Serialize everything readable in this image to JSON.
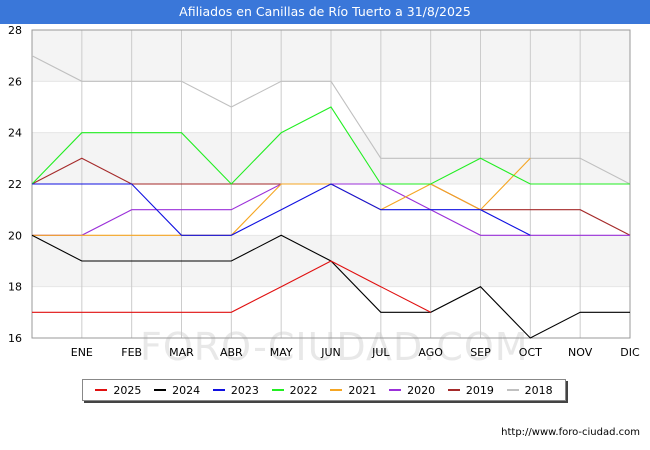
{
  "header": {
    "title": "Afiliados en Canillas de Río Tuerto a 31/8/2025"
  },
  "watermark": "FORO-CIUDAD.COM",
  "source": "http://www.foro-ciudad.com",
  "colors": {
    "title_bg": "#3a77d9",
    "band": "#f4f4f4",
    "grid": "#cccccc"
  },
  "chart_data": {
    "type": "line",
    "title": "Afiliados en Canillas de Río Tuerto a 31/8/2025",
    "x": [
      "",
      "ENE",
      "FEB",
      "MAR",
      "ABR",
      "MAY",
      "JUN",
      "JUL",
      "AGO",
      "SEP",
      "OCT",
      "NOV",
      "DIC"
    ],
    "categories": [
      "ENE",
      "FEB",
      "MAR",
      "ABR",
      "MAY",
      "JUN",
      "JUL",
      "AGO",
      "SEP",
      "OCT",
      "NOV",
      "DIC"
    ],
    "ylim": [
      16,
      28
    ],
    "yticks": [
      16,
      18,
      20,
      22,
      24,
      26,
      28
    ],
    "grid": true,
    "legend_position": "bottom",
    "series": [
      {
        "name": "2018",
        "color": "#c0c0c0",
        "values": [
          27,
          26,
          26,
          26,
          25,
          26,
          26,
          23,
          23,
          23,
          23,
          23,
          22
        ]
      },
      {
        "name": "2019",
        "color": "#a52a2a",
        "values": [
          22,
          23,
          22,
          22,
          22,
          22,
          22,
          22,
          22,
          21,
          21,
          21,
          20
        ]
      },
      {
        "name": "2020",
        "color": "#9b30d9",
        "values": [
          20,
          20,
          21,
          21,
          21,
          22,
          22,
          22,
          21,
          20,
          20,
          20,
          20
        ]
      },
      {
        "name": "2021",
        "color": "#f5a623",
        "values": [
          20,
          20,
          20,
          20,
          20,
          22,
          22,
          21,
          22,
          21,
          23,
          null,
          null
        ]
      },
      {
        "name": "2022",
        "color": "#22ee22",
        "values": [
          22,
          24,
          24,
          24,
          22,
          24,
          25,
          22,
          22,
          23,
          22,
          22,
          22
        ]
      },
      {
        "name": "2023",
        "color": "#1010e0",
        "values": [
          22,
          22,
          22,
          20,
          20,
          21,
          22,
          21,
          21,
          21,
          20,
          null,
          null
        ]
      },
      {
        "name": "2024",
        "color": "#000000",
        "values": [
          20,
          19,
          19,
          19,
          19,
          20,
          19,
          17,
          17,
          18,
          16,
          17,
          17
        ]
      },
      {
        "name": "2025",
        "color": "#e01010",
        "values": [
          17,
          17,
          17,
          17,
          17,
          18,
          19,
          18,
          17,
          null,
          null,
          null,
          null
        ]
      }
    ],
    "legend": [
      "2025",
      "2024",
      "2023",
      "2022",
      "2021",
      "2020",
      "2019",
      "2018"
    ]
  }
}
